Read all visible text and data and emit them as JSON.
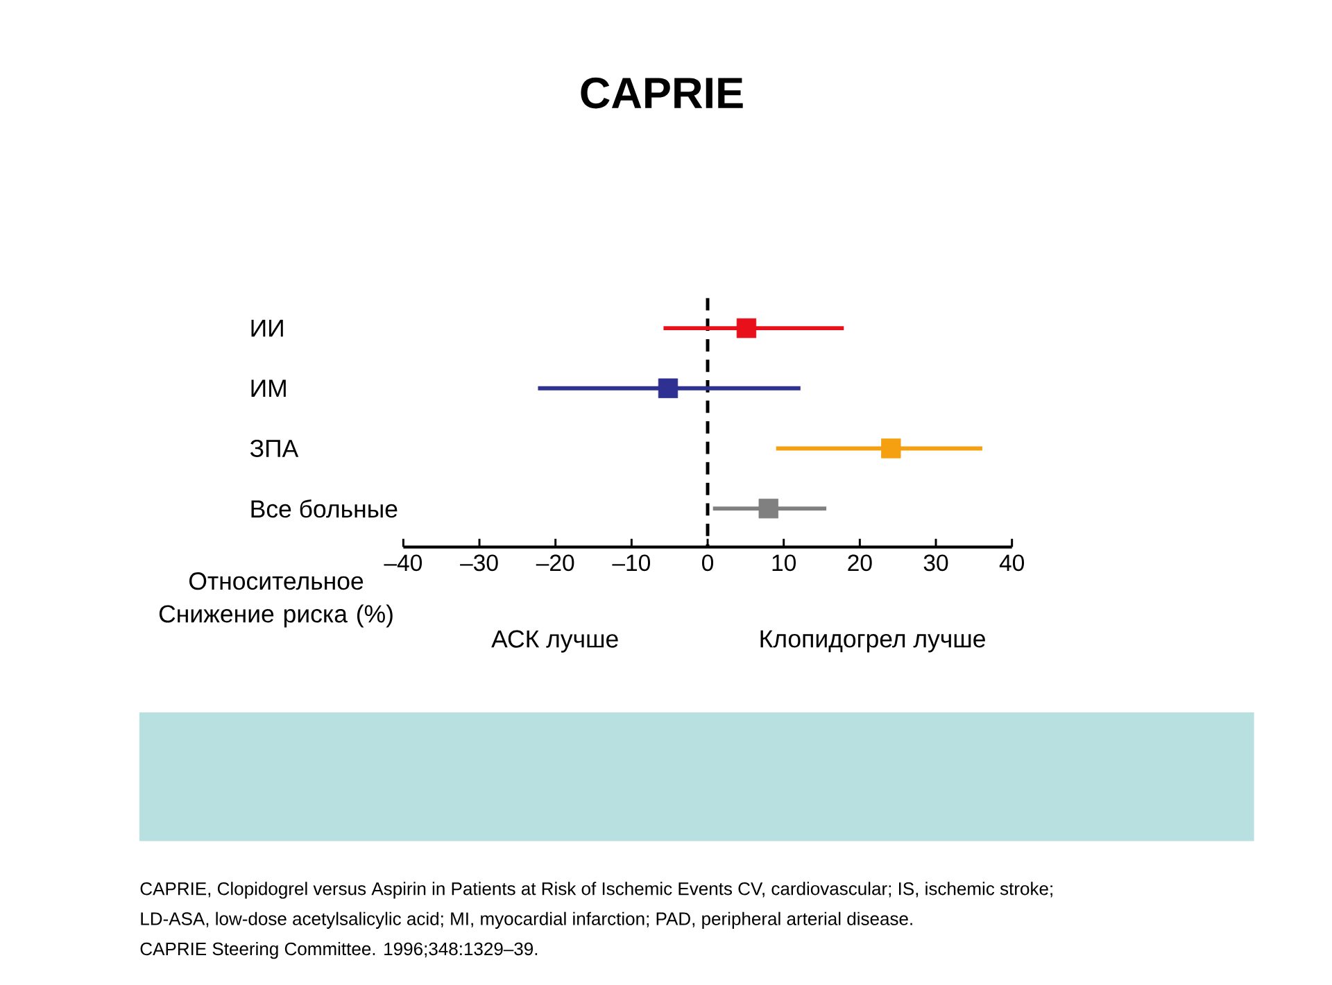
{
  "chart_data": {
    "type": "scatter",
    "title": "CAPRIE",
    "orientation": "horizontal",
    "marker": "square",
    "categories": [
      "ИИ",
      "ИМ",
      "ЗПА",
      "Все больные"
    ],
    "values": [
      5.1,
      -5.2,
      24.1,
      8.0
    ],
    "errors": [
      [
        -5.8,
        17.9
      ],
      [
        -22.3,
        12.2
      ],
      [
        9.0,
        36.1
      ],
      [
        0.7,
        15.6
      ]
    ],
    "colors": [
      "#e8101a",
      "#2e3192",
      "#f5a010",
      "#808080"
    ],
    "xlabel": "Относительное Снижение риска (%)",
    "xlim": [
      -40,
      40
    ],
    "xticks": [
      {
        "value": -40,
        "label": "–40"
      },
      {
        "value": -30,
        "label": "–30"
      },
      {
        "value": -20,
        "label": "–20"
      },
      {
        "value": -10,
        "label": "–10"
      },
      0,
      10,
      20,
      30,
      40
    ],
    "legend": false,
    "ref_lines": [
      {
        "axis": "x",
        "value": 0,
        "color": "#000000",
        "line_style": "dashed"
      }
    ],
    "annotations": [
      "АСК лучше",
      "Клопидогрел лучше",
      "CAPRIE, Clopidogrel versus Aspirin in Patients at Risk of Ischemic Events CV, cardiovascular; IS, ischemic stroke;",
      "LD-ASA, low-dose acetylsalicylic acid; MI,  myocardial infarction; PAD, peripheral arterial disease.",
      "CAPRIE Steering Committee. 1996;348:1329–39."
    ]
  }
}
